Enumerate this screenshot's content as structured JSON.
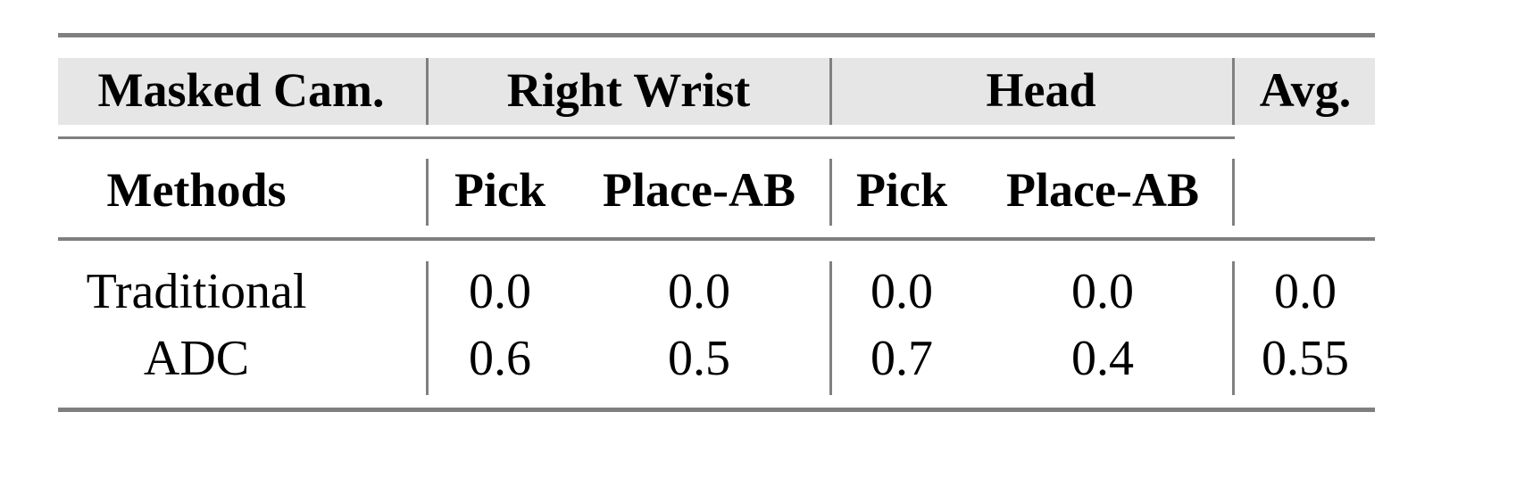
{
  "table": {
    "header_row1": {
      "masked_cam": "Masked Cam.",
      "right_wrist": "Right Wrist",
      "head": "Head",
      "avg": "Avg."
    },
    "header_row2": {
      "methods": "Methods",
      "columns": [
        "Pick",
        "Place-AB",
        "Pick",
        "Place-AB"
      ]
    },
    "rows": [
      {
        "method": "Traditional",
        "values": [
          "0.0",
          "0.0",
          "0.0",
          "0.0",
          "0.0"
        ]
      },
      {
        "method": "ADC",
        "values": [
          "0.6",
          "0.5",
          "0.7",
          "0.4",
          "0.55"
        ]
      }
    ],
    "colors": {
      "header_bg": "#e6e6e6",
      "rules": "#7f7f7f"
    }
  }
}
